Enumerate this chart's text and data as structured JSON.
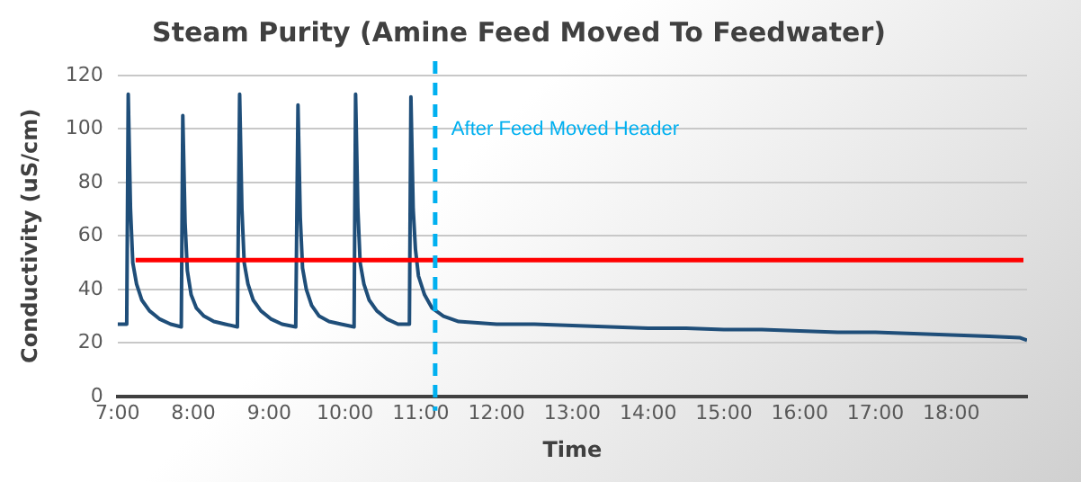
{
  "chart_data": {
    "type": "line",
    "title": "Steam Purity (Amine Feed Moved To Feedwater)",
    "xlabel": "Time",
    "ylabel": "Conductivity (uS/cm)",
    "x": [
      7.0,
      7.12,
      7.14,
      7.17,
      7.2,
      7.25,
      7.32,
      7.42,
      7.55,
      7.7,
      7.84,
      7.86,
      7.89,
      7.92,
      7.97,
      8.04,
      8.14,
      8.27,
      8.42,
      8.58,
      8.61,
      8.64,
      8.67,
      8.72,
      8.79,
      8.89,
      9.02,
      9.17,
      9.35,
      9.38,
      9.41,
      9.44,
      9.49,
      9.56,
      9.66,
      9.79,
      9.95,
      10.12,
      10.14,
      10.17,
      10.2,
      10.25,
      10.32,
      10.42,
      10.55,
      10.7,
      10.85,
      10.87,
      10.9,
      10.93,
      10.97,
      11.05,
      11.15,
      11.3,
      11.5,
      12.0,
      12.5,
      13.0,
      13.5,
      14.0,
      14.5,
      15.0,
      15.5,
      16.0,
      16.5,
      17.0,
      17.5,
      18.0,
      18.5,
      18.9,
      19.0
    ],
    "series": [
      {
        "color": "#1f4e79",
        "values": [
          27,
          27,
          113,
          70,
          50,
          42,
          36,
          32,
          29,
          27,
          26,
          105,
          65,
          47,
          38,
          33,
          30,
          28,
          27,
          26,
          113,
          70,
          50,
          42,
          36,
          32,
          29,
          27,
          26,
          109,
          67,
          48,
          40,
          34,
          30,
          28,
          27,
          26,
          113,
          70,
          50,
          42,
          36,
          32,
          29,
          27,
          27,
          112,
          70,
          55,
          45,
          38,
          33,
          30,
          28,
          27,
          27,
          26.5,
          26,
          25.5,
          25.5,
          25,
          25,
          24.5,
          24,
          24,
          23.5,
          23,
          22.5,
          22,
          21
        ]
      }
    ],
    "xlim": [
      7,
      19
    ],
    "ylim": [
      0,
      120
    ],
    "xticks": [
      {
        "value": 7,
        "label": "7:00"
      },
      {
        "value": 8,
        "label": "8:00"
      },
      {
        "value": 9,
        "label": "9:00"
      },
      {
        "value": 10,
        "label": "10:00"
      },
      {
        "value": 11,
        "label": "11:00"
      },
      {
        "value": 12,
        "label": "12:00"
      },
      {
        "value": 13,
        "label": "13:00"
      },
      {
        "value": 14,
        "label": "14:00"
      },
      {
        "value": 15,
        "label": "15:00"
      },
      {
        "value": 16,
        "label": "16:00"
      },
      {
        "value": 17,
        "label": "17:00"
      },
      {
        "value": 18,
        "label": "18:00"
      }
    ],
    "yticks": [
      0,
      20,
      40,
      60,
      80,
      100,
      120
    ],
    "grid": "y",
    "legend": false,
    "marker": "none",
    "line_style": "solid",
    "ref_lines": [
      {
        "axis": "y",
        "value": 51,
        "color": "#ff0000",
        "line_style": "solid"
      },
      {
        "axis": "x",
        "value": 11.19,
        "label": "After Feed Moved Header",
        "color": "#00b0f0",
        "line_style": "dashed"
      }
    ]
  }
}
